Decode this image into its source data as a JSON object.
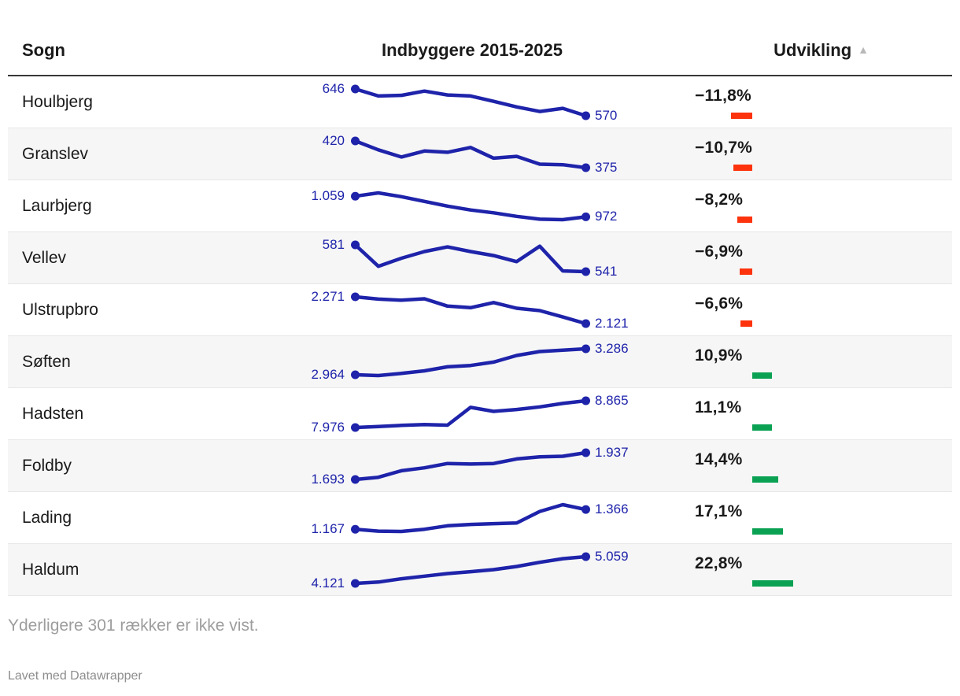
{
  "header": {
    "sogn": "Sogn",
    "indbyggere": "Indbyggere 2015-2025",
    "udvikling": "Udvikling",
    "sort_icon": "▲"
  },
  "footer": {
    "note": "Yderligere 301 rækker er ikke vist.",
    "credit": "Lavet med Datawrapper"
  },
  "colors": {
    "line": "#1e23aa",
    "value_label": "#1e23aa",
    "negative_bar": "#fc330d",
    "positive_bar": "#0aa153"
  },
  "chart_data": {
    "type": "table",
    "title": "Indbyggere 2015-2025",
    "columns": [
      "Sogn",
      "Indbyggere 2015-2025",
      "Udvikling"
    ],
    "sparkline_x_range": [
      2015,
      2025
    ],
    "sort": "Udvikling ascending",
    "rows": [
      {
        "name": "Houlbjerg",
        "start_label": "646",
        "end_label": "570",
        "pct": -11.8,
        "pct_label": "−11,8%",
        "series": [
          646,
          626,
          628,
          640,
          629,
          626,
          611,
          595,
          582,
          591,
          570
        ]
      },
      {
        "name": "Granslev",
        "start_label": "420",
        "end_label": "375",
        "pct": -10.7,
        "pct_label": "−10,7%",
        "series": [
          420,
          405,
          393,
          403,
          401,
          409,
          391,
          394,
          381,
          380,
          375
        ]
      },
      {
        "name": "Laurbjerg",
        "start_label": "1.059",
        "end_label": "972",
        "pct": -8.2,
        "pct_label": "−8,2%",
        "series": [
          1059,
          1073,
          1057,
          1037,
          1017,
          1001,
          989,
          974,
          962,
          960,
          972
        ]
      },
      {
        "name": "Vellev",
        "start_label": "581",
        "end_label": "541",
        "pct": -6.9,
        "pct_label": "−6,9%",
        "series": [
          581,
          549,
          561,
          571,
          578,
          571,
          565,
          556,
          579,
          542,
          541
        ]
      },
      {
        "name": "Ulstrupbro",
        "start_label": "2.271",
        "end_label": "2.121",
        "pct": -6.6,
        "pct_label": "−6,6%",
        "series": [
          2271,
          2258,
          2252,
          2260,
          2219,
          2210,
          2239,
          2207,
          2194,
          2158,
          2121
        ]
      },
      {
        "name": "Søften",
        "start_label": "2.964",
        "end_label": "3.286",
        "pct": 10.9,
        "pct_label": "10,9%",
        "series": [
          2964,
          2954,
          2980,
          3013,
          3062,
          3079,
          3121,
          3203,
          3252,
          3269,
          3286
        ]
      },
      {
        "name": "Hadsten",
        "start_label": "7.976",
        "end_label": "8.865",
        "pct": 11.1,
        "pct_label": "11,1%",
        "series": [
          7976,
          8011,
          8046,
          8073,
          8055,
          8645,
          8513,
          8574,
          8662,
          8777,
          8865
        ]
      },
      {
        "name": "Foldby",
        "start_label": "1.693",
        "end_label": "1.937",
        "pct": 14.4,
        "pct_label": "14,4%",
        "series": [
          1693,
          1713,
          1773,
          1799,
          1839,
          1834,
          1839,
          1880,
          1900,
          1905,
          1937
        ]
      },
      {
        "name": "Lading",
        "start_label": "1.167",
        "end_label": "1.366",
        "pct": 17.1,
        "pct_label": "17,1%",
        "series": [
          1167,
          1148,
          1145,
          1167,
          1202,
          1216,
          1224,
          1230,
          1347,
          1415,
          1366
        ]
      },
      {
        "name": "Haldum",
        "start_label": "4.121",
        "end_label": "5.059",
        "pct": 22.8,
        "pct_label": "22,8%",
        "series": [
          4121,
          4167,
          4285,
          4376,
          4467,
          4531,
          4604,
          4713,
          4859,
          4986,
          5059
        ]
      }
    ]
  }
}
